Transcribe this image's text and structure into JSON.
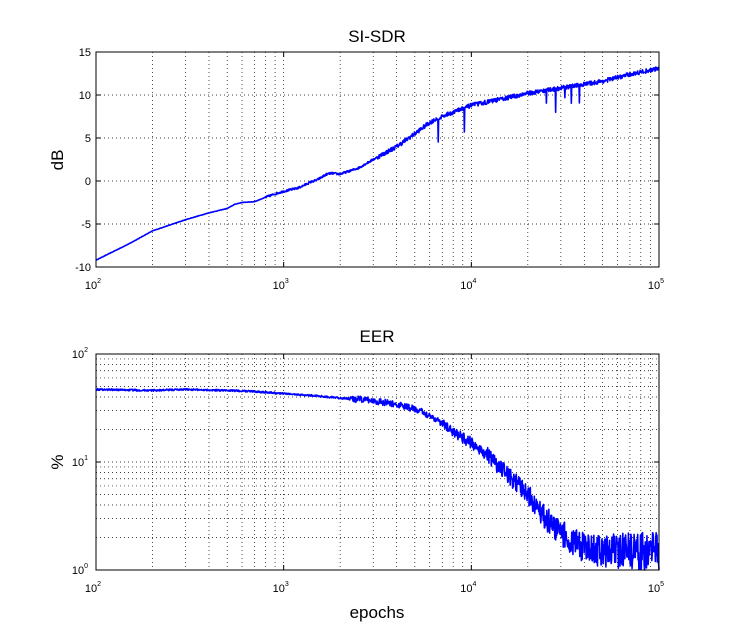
{
  "chart_data": [
    {
      "type": "line",
      "title": "SI-SDR",
      "xlabel": "",
      "ylabel": "dB",
      "xscale": "log",
      "yscale": "linear",
      "xlim": [
        100,
        100000
      ],
      "ylim": [
        -10,
        15
      ],
      "grid": true,
      "x_ticks": [
        {
          "base": "10",
          "exp": "2"
        },
        {
          "base": "10",
          "exp": "3"
        },
        {
          "base": "10",
          "exp": "4"
        },
        {
          "base": "10",
          "exp": "5"
        }
      ],
      "y_ticks": [
        "15",
        "10",
        "5",
        "0",
        "-5",
        "-10"
      ],
      "series": [
        {
          "color": "#0000ff",
          "x": [
            100,
            150,
            200,
            300,
            400,
            500,
            550,
            600,
            700,
            800,
            900,
            1000,
            1200,
            1400,
            1500,
            1700,
            1800,
            2000,
            2500,
            3000,
            3500,
            4000,
            5000,
            6000,
            7000,
            8000,
            10000,
            15000,
            20000,
            30000,
            50000,
            70000,
            100000
          ],
          "y": [
            -9.2,
            -7.3,
            -5.8,
            -4.5,
            -3.7,
            -3.2,
            -2.7,
            -2.5,
            -2.4,
            -1.9,
            -1.5,
            -1.2,
            -0.8,
            -0.1,
            0.1,
            0.8,
            0.9,
            0.8,
            1.5,
            2.5,
            3.3,
            4.0,
            5.5,
            6.8,
            7.5,
            8.0,
            8.8,
            9.6,
            10.2,
            10.8,
            11.6,
            12.4,
            13.1
          ]
        }
      ]
    },
    {
      "type": "line",
      "title": "EER",
      "xlabel": "epochs",
      "ylabel": "%",
      "xscale": "log",
      "yscale": "log",
      "xlim": [
        100,
        100000
      ],
      "ylim": [
        1,
        100
      ],
      "grid": true,
      "x_ticks": [
        {
          "base": "10",
          "exp": "2"
        },
        {
          "base": "10",
          "exp": "3"
        },
        {
          "base": "10",
          "exp": "4"
        },
        {
          "base": "10",
          "exp": "5"
        }
      ],
      "y_ticks": [
        {
          "base": "10",
          "exp": "2"
        },
        {
          "base": "10",
          "exp": "1"
        },
        {
          "base": "10",
          "exp": "0"
        }
      ],
      "series": [
        {
          "color": "#0000ff",
          "x": [
            100,
            200,
            300,
            500,
            700,
            1000,
            1200,
            1500,
            2000,
            2500,
            3000,
            4000,
            5000,
            6000,
            7000,
            8000,
            10000,
            12000,
            15000,
            20000,
            25000,
            30000,
            40000,
            50000,
            70000,
            100000
          ],
          "y": [
            47,
            46,
            47,
            46,
            45,
            43,
            42,
            41,
            39,
            38,
            37,
            34,
            31,
            27,
            23,
            19,
            15,
            12,
            8,
            5,
            3,
            2.2,
            1.6,
            1.5,
            1.5,
            1.5
          ]
        }
      ]
    }
  ]
}
